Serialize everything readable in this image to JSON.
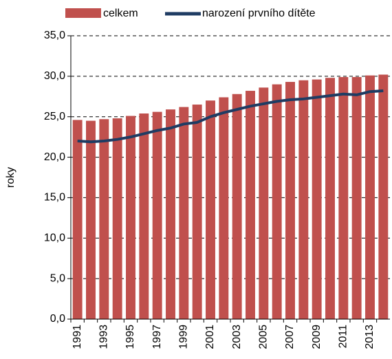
{
  "chart_data": {
    "type": "bar_line",
    "y_label": "roky",
    "categories": [
      "1991",
      null,
      "1993",
      null,
      "1995",
      null,
      "1997",
      null,
      "1999",
      null,
      "2001",
      null,
      "2003",
      null,
      "2005",
      null,
      "2007",
      null,
      "2009",
      null,
      "2011",
      null,
      "2013",
      null
    ],
    "series": [
      {
        "name": "celkem",
        "type": "bar",
        "color": "#c0504d",
        "values": [
          24.6,
          24.5,
          24.7,
          24.8,
          25.1,
          25.4,
          25.6,
          25.9,
          26.2,
          26.5,
          27.0,
          27.4,
          27.8,
          28.2,
          28.6,
          29.0,
          29.3,
          29.5,
          29.6,
          29.8,
          29.9,
          29.9,
          30.1,
          30.2
        ]
      },
      {
        "name": "narození prvního dítěte",
        "type": "line",
        "color": "#1f3c63",
        "values": [
          22.0,
          21.9,
          22.0,
          22.2,
          22.5,
          22.9,
          23.3,
          23.6,
          24.1,
          24.3,
          25.0,
          25.5,
          25.9,
          26.3,
          26.6,
          26.9,
          27.1,
          27.2,
          27.4,
          27.6,
          27.8,
          27.7,
          28.1,
          28.2
        ]
      }
    ],
    "ylim": [
      0,
      35
    ],
    "yticks": [
      {
        "value": 0,
        "label": "0,0"
      },
      {
        "value": 5,
        "label": "5,0"
      },
      {
        "value": 10,
        "label": "10,0"
      },
      {
        "value": 15,
        "label": "15,0"
      },
      {
        "value": 20,
        "label": "20,0"
      },
      {
        "value": 25,
        "label": "25,0"
      },
      {
        "value": 30,
        "label": "30,0"
      },
      {
        "value": 35,
        "label": "35,0"
      }
    ],
    "grid": true
  }
}
